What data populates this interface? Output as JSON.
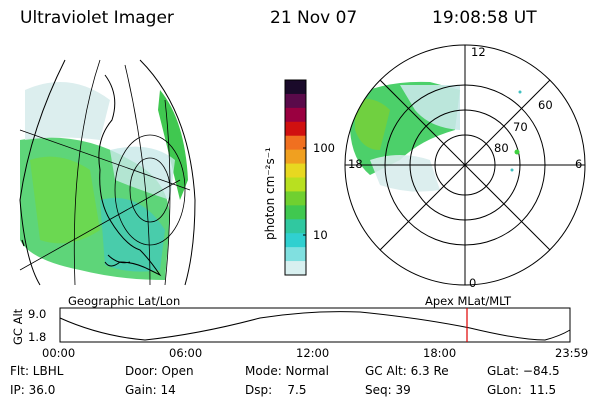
{
  "header": {
    "instrument": "Ultraviolet Imager",
    "date": "21 Nov 07",
    "time": "19:08:58 UT"
  },
  "colorbar": {
    "unit_label": "photon cm⁻²s⁻¹",
    "ticks": [
      "100",
      "10"
    ],
    "colors": [
      "#1a0a2a",
      "#5a0a4a",
      "#9a0040",
      "#d01010",
      "#f07020",
      "#f0a020",
      "#e8d820",
      "#b8e020",
      "#70d030",
      "#40c850",
      "#30c8a0",
      "#30d0d0",
      "#80e0e0",
      "#d8f0f0"
    ]
  },
  "labels": {
    "left_map": "Geographic Lat/Lon",
    "right_map": "Apex MLat/MLT"
  },
  "polar": {
    "mlt_12": "12",
    "mlt_18": "18",
    "mlt_6": "6",
    "mlt_0": "0",
    "lat_60": "60",
    "lat_70": "70",
    "lat_80": "80"
  },
  "altitude_plot": {
    "ylabel": "GC Alt",
    "ymax": "9.0",
    "ymin": "1.8",
    "xticks": [
      "00:00",
      "06:00",
      "12:00",
      "18:00",
      "23:59"
    ],
    "marker_time": "19:09"
  },
  "status": {
    "flt": "Flt: LBHL",
    "ip": "IP: 36.0",
    "door": "Door: Open",
    "gain": "Gain: 14",
    "mode": "Mode: Normal",
    "dsp": "Dsp:    7.5",
    "gcalt": "GC Alt: 6.3 Re",
    "seq": "Seq: 39",
    "glat": "GLat: −84.5",
    "glon": "GLon:  11.5"
  },
  "colors": {
    "aurora_green": "#40d060",
    "aurora_cyan": "#40d0c0",
    "marker_red": "#e00000",
    "bg": "#ffffff"
  }
}
